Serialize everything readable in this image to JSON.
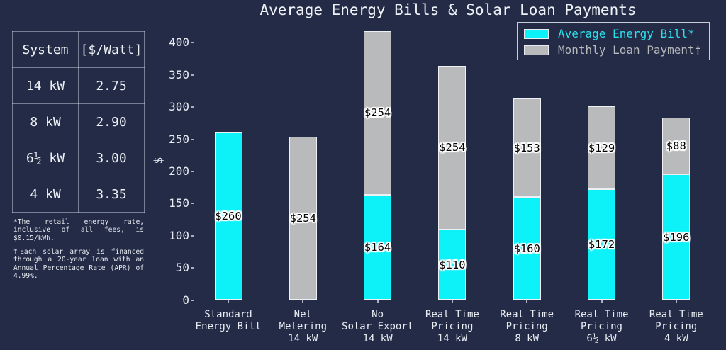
{
  "title": "Average Energy Bills & Solar Loan Payments",
  "colors": {
    "background": "#232b46",
    "cyan": "#0cf2f8",
    "gray": "#b9babb",
    "bar_edge": "#edf0f4",
    "legend_cyan_text": "#2be2ec",
    "legend_gray_text": "#b7b9bb",
    "text": "#eef1f6"
  },
  "table": {
    "headers": [
      "System",
      "[$/Watt]"
    ],
    "rows": [
      [
        "14 kW",
        "2.75"
      ],
      [
        "8 kW",
        "2.90"
      ],
      [
        "6½ kW",
        "3.00"
      ],
      [
        "4 kW",
        "3.35"
      ]
    ]
  },
  "footnotes": [
    "*The retail energy rate, inclusive of all fees, is $0.15/kWh.",
    "†Each solar array is financed through a 20-year loan with an Annual Percentage Rate (APR) of 4.99%."
  ],
  "legend": {
    "items": [
      {
        "label": "Average Energy Bill*",
        "color_key": "cyan",
        "text_color": "#2be2ec"
      },
      {
        "label": "Monthly Loan Payment†",
        "color_key": "gray",
        "text_color": "#b7b9bb"
      }
    ]
  },
  "chart_data": {
    "type": "bar",
    "stacked": true,
    "title": "Average Energy Bills & Solar Loan Payments",
    "ylabel": "$",
    "xlabel": "",
    "yticks": [
      0,
      50,
      100,
      150,
      200,
      250,
      300,
      350,
      400
    ],
    "ylim": [
      0,
      430
    ],
    "grid": false,
    "legend_position": "upper right",
    "categories": [
      "Standard\nEnergy Bill",
      "Net\nMetering\n14 kW",
      "No\nSolar Export\n14 kW",
      "Real Time\nPricing\n14 kW",
      "Real Time\nPricing\n8 kW",
      "Real Time\nPricing\n6½ kW",
      "Real Time\nPricing\n4 kW"
    ],
    "series": [
      {
        "name": "Average Energy Bill*",
        "color_key": "cyan",
        "values": [
          260,
          0,
          164,
          110,
          160,
          172,
          196
        ],
        "bar_labels": [
          "$260",
          "",
          "$164",
          "$110",
          "$160",
          "$172",
          "$196"
        ]
      },
      {
        "name": "Monthly Loan Payment†",
        "color_key": "gray",
        "values": [
          0,
          254,
          254,
          254,
          153,
          129,
          88
        ],
        "bar_labels": [
          "",
          "$254",
          "$254",
          "$254",
          "$153",
          "$129",
          "$88"
        ]
      }
    ]
  }
}
